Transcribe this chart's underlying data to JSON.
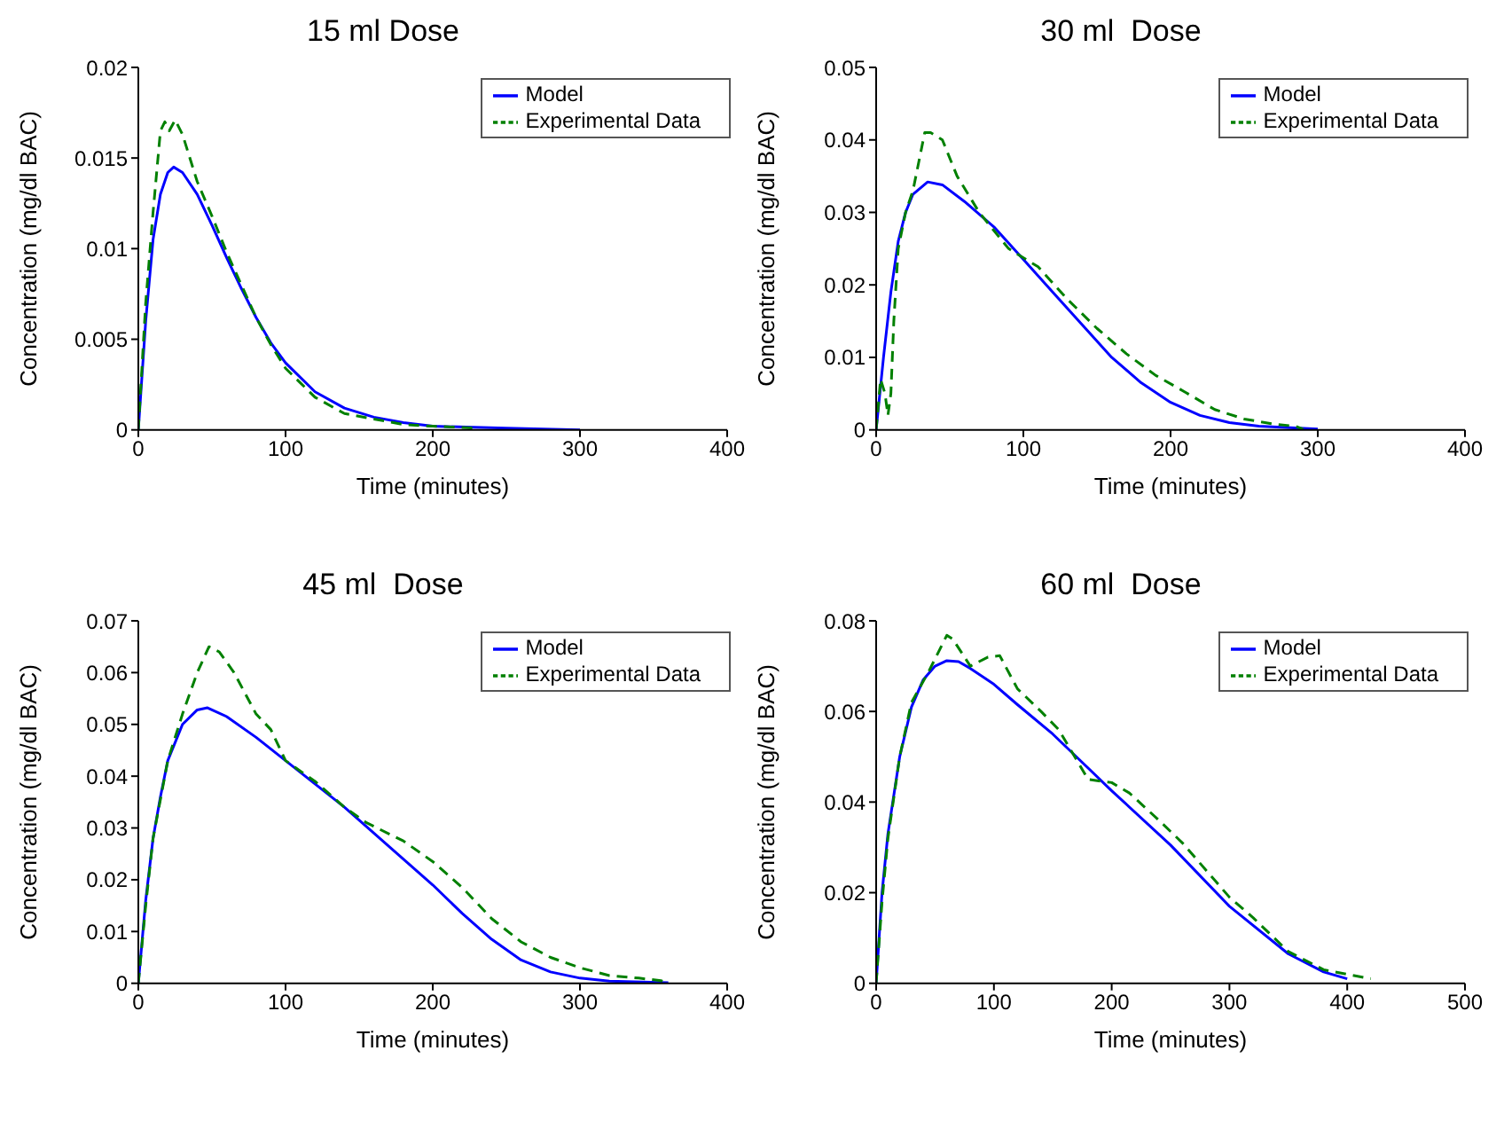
{
  "chart_data": [
    {
      "type": "line",
      "title": "15 ml Dose",
      "xlabel": "Time (minutes)",
      "ylabel": "Concentration (mg/dl BAC)",
      "xlim": [
        0,
        400
      ],
      "xticks": [
        0,
        100,
        200,
        300,
        400
      ],
      "ylim": [
        0,
        0.02
      ],
      "yticks": [
        0,
        0.005,
        0.01,
        0.015,
        0.02
      ],
      "legend": "top right",
      "grid": false,
      "series": [
        {
          "name": "Model",
          "color": "#0000ff",
          "line_style": "solid",
          "x": [
            0,
            5,
            10,
            15,
            20,
            24,
            30,
            40,
            50,
            60,
            70,
            80,
            90,
            100,
            120,
            140,
            160,
            180,
            200,
            250,
            300
          ],
          "values": [
            0,
            0.006,
            0.0105,
            0.013,
            0.0142,
            0.0145,
            0.0142,
            0.013,
            0.0113,
            0.0095,
            0.0078,
            0.0062,
            0.0048,
            0.0037,
            0.0021,
            0.0012,
            0.0007,
            0.0004,
            0.0002,
            0.0001,
            0
          ]
        },
        {
          "name": "Experimental Data",
          "color": "#008000",
          "line_style": "dashed",
          "x": [
            0,
            5,
            10,
            15,
            18,
            21,
            25,
            30,
            40,
            50,
            60,
            70,
            80,
            90,
            100,
            120,
            140,
            160,
            180,
            200,
            230
          ],
          "values": [
            0,
            0.007,
            0.012,
            0.0165,
            0.017,
            0.0165,
            0.0171,
            0.0163,
            0.0137,
            0.0118,
            0.0098,
            0.008,
            0.0062,
            0.0047,
            0.0034,
            0.0018,
            0.0009,
            0.0006,
            0.0003,
            0.0002,
            0.0001
          ]
        }
      ]
    },
    {
      "type": "line",
      "title": "30 ml  Dose",
      "xlabel": "Time (minutes)",
      "ylabel": "Concentration (mg/dl BAC)",
      "xlim": [
        0,
        400
      ],
      "xticks": [
        0,
        100,
        200,
        300,
        400
      ],
      "ylim": [
        0,
        0.05
      ],
      "yticks": [
        0,
        0.01,
        0.02,
        0.03,
        0.04,
        0.05
      ],
      "legend": "top right",
      "grid": false,
      "series": [
        {
          "name": "Model",
          "color": "#0000ff",
          "line_style": "solid",
          "x": [
            0,
            5,
            10,
            15,
            20,
            25,
            35,
            45,
            60,
            80,
            100,
            120,
            140,
            160,
            180,
            200,
            220,
            240,
            260,
            300
          ],
          "values": [
            0,
            0.01,
            0.019,
            0.026,
            0.03,
            0.0325,
            0.0342,
            0.0338,
            0.0315,
            0.028,
            0.0235,
            0.019,
            0.0145,
            0.01,
            0.0065,
            0.0038,
            0.002,
            0.001,
            0.0005,
            0.0001
          ]
        },
        {
          "name": "Experimental Data",
          "color": "#008000",
          "line_style": "dashed",
          "x": [
            0,
            3,
            6,
            8,
            10,
            12,
            15,
            20,
            25,
            30,
            33,
            37,
            45,
            55,
            70,
            90,
            110,
            130,
            150,
            170,
            190,
            210,
            230,
            250,
            270,
            285,
            290
          ],
          "values": [
            0,
            0.007,
            0.005,
            0.002,
            0.005,
            0.015,
            0.025,
            0.03,
            0.033,
            0.038,
            0.041,
            0.041,
            0.04,
            0.035,
            0.03,
            0.025,
            0.0225,
            0.018,
            0.014,
            0.0105,
            0.0075,
            0.0052,
            0.0028,
            0.0015,
            0.0008,
            0.0005,
            0.0001
          ]
        }
      ]
    },
    {
      "type": "line",
      "title": "45 ml  Dose",
      "xlabel": "Time (minutes)",
      "ylabel": "Concentration (mg/dl BAC)",
      "xlim": [
        0,
        400
      ],
      "xticks": [
        0,
        100,
        200,
        300,
        400
      ],
      "ylim": [
        0,
        0.07
      ],
      "yticks": [
        0,
        0.01,
        0.02,
        0.03,
        0.04,
        0.05,
        0.06,
        0.07
      ],
      "legend": "top right",
      "grid": false,
      "series": [
        {
          "name": "Model",
          "color": "#0000ff",
          "line_style": "solid",
          "x": [
            0,
            5,
            10,
            15,
            20,
            30,
            40,
            47,
            60,
            80,
            100,
            120,
            140,
            160,
            180,
            200,
            220,
            240,
            260,
            280,
            300,
            320,
            360
          ],
          "values": [
            0,
            0.016,
            0.028,
            0.036,
            0.043,
            0.05,
            0.0528,
            0.0532,
            0.0515,
            0.0475,
            0.043,
            0.0385,
            0.034,
            0.029,
            0.024,
            0.019,
            0.0135,
            0.0085,
            0.0045,
            0.0022,
            0.001,
            0.0004,
            0.0001
          ]
        },
        {
          "name": "Experimental Data",
          "color": "#008000",
          "line_style": "dashed",
          "x": [
            0,
            5,
            10,
            20,
            30,
            40,
            48,
            55,
            65,
            80,
            90,
            100,
            120,
            140,
            155,
            180,
            200,
            220,
            240,
            260,
            280,
            300,
            320,
            340,
            355,
            360
          ],
          "values": [
            0,
            0.015,
            0.028,
            0.043,
            0.052,
            0.06,
            0.065,
            0.064,
            0.06,
            0.052,
            0.049,
            0.043,
            0.039,
            0.034,
            0.031,
            0.0275,
            0.0235,
            0.0185,
            0.0125,
            0.008,
            0.005,
            0.003,
            0.0015,
            0.001,
            0.0005,
            0
          ]
        }
      ]
    },
    {
      "type": "line",
      "title": "60 ml  Dose",
      "xlabel": "Time (minutes)",
      "ylabel": "Concentration (mg/dl BAC)",
      "xlim": [
        0,
        500
      ],
      "xticks": [
        0,
        100,
        200,
        300,
        400,
        500
      ],
      "ylim": [
        0,
        0.08
      ],
      "yticks": [
        0,
        0.02,
        0.04,
        0.06,
        0.08
      ],
      "legend": "top right",
      "grid": false,
      "series": [
        {
          "name": "Model",
          "color": "#0000ff",
          "line_style": "solid",
          "x": [
            0,
            5,
            10,
            20,
            30,
            40,
            50,
            60,
            70,
            80,
            100,
            120,
            150,
            180,
            200,
            250,
            300,
            350,
            380,
            400
          ],
          "values": [
            0,
            0.02,
            0.033,
            0.05,
            0.061,
            0.067,
            0.07,
            0.0712,
            0.071,
            0.0695,
            0.066,
            0.0615,
            0.055,
            0.0475,
            0.0425,
            0.0305,
            0.017,
            0.0065,
            0.0025,
            0.001
          ]
        },
        {
          "name": "Experimental Data",
          "color": "#008000",
          "line_style": "dashed",
          "x": [
            0,
            5,
            10,
            20,
            30,
            45,
            60,
            65,
            80,
            95,
            105,
            120,
            140,
            155,
            180,
            200,
            215,
            240,
            260,
            300,
            320,
            350,
            380,
            400,
            420
          ],
          "values": [
            0,
            0.018,
            0.032,
            0.05,
            0.062,
            0.069,
            0.0768,
            0.076,
            0.07,
            0.072,
            0.0723,
            0.065,
            0.06,
            0.056,
            0.045,
            0.0443,
            0.042,
            0.036,
            0.031,
            0.019,
            0.0145,
            0.007,
            0.003,
            0.002,
            0.001
          ]
        }
      ]
    }
  ]
}
